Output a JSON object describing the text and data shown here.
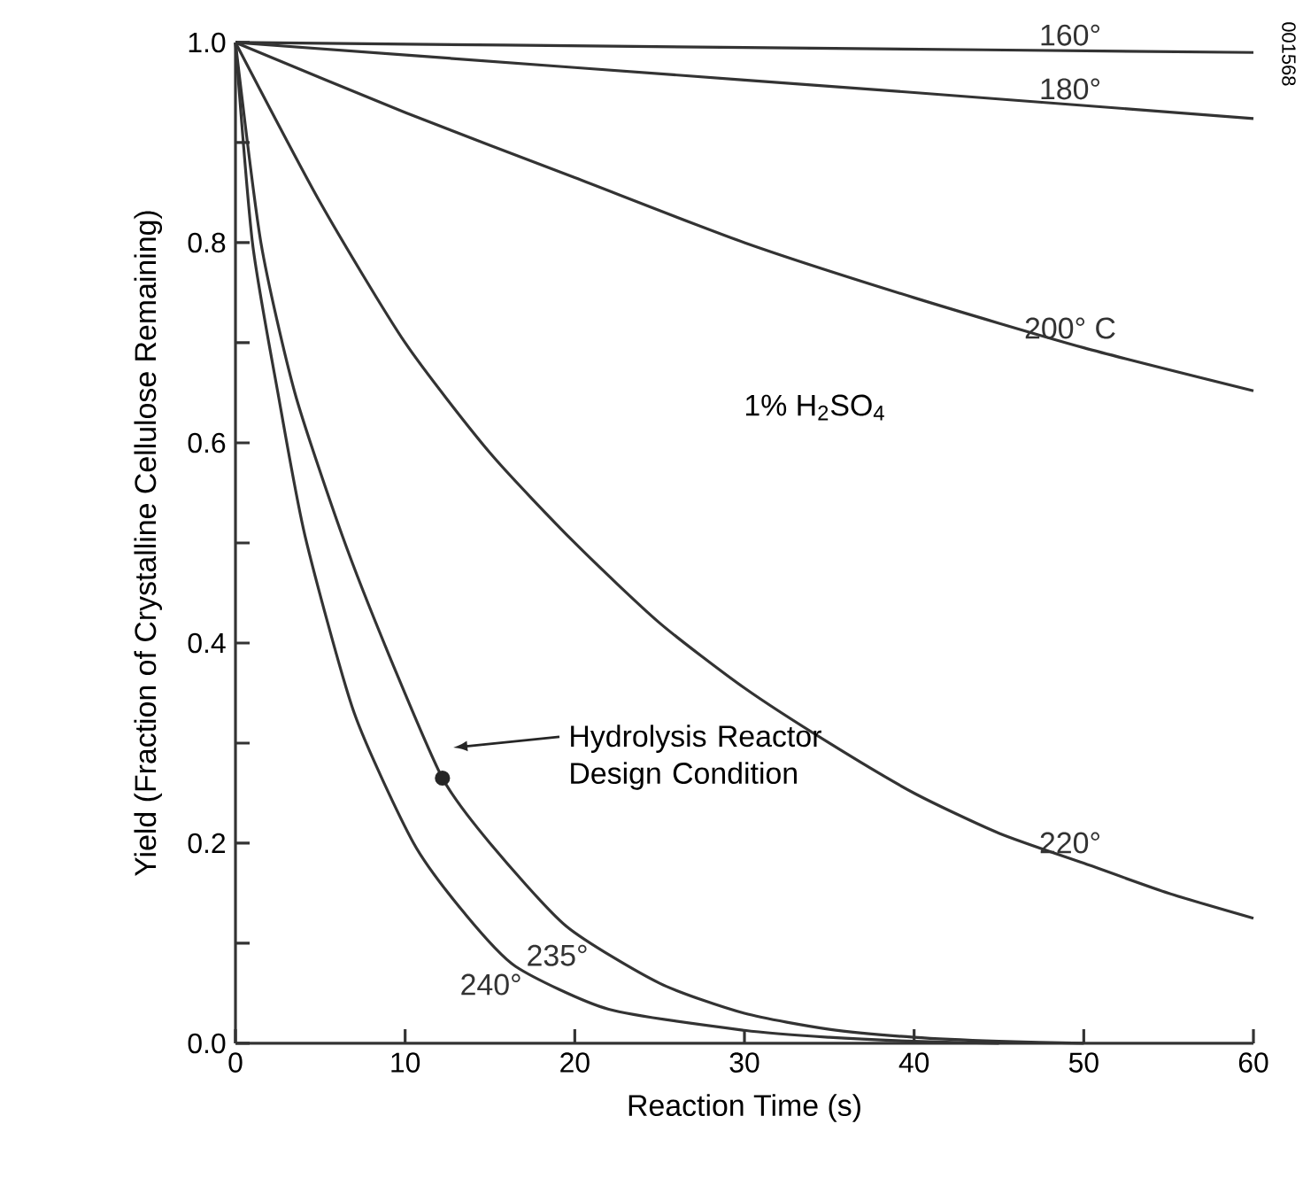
{
  "chart_data": {
    "type": "line",
    "xlabel": "Reaction Time (s)",
    "ylabel": "Yield (Fraction of Crystalline Cellulose Remaining)",
    "xlim": [
      0,
      60
    ],
    "ylim": [
      0,
      1.0
    ],
    "xticks": [
      0,
      10,
      20,
      30,
      40,
      50,
      60
    ],
    "yticks": [
      {
        "value": 0,
        "label": "0.0"
      },
      {
        "value": 0.1,
        "label": null
      },
      {
        "value": 0.2,
        "label": "0.2"
      },
      {
        "value": 0.3,
        "label": null
      },
      {
        "value": 0.4,
        "label": "0.4"
      },
      {
        "value": 0.5,
        "label": null
      },
      {
        "value": 0.6,
        "label": "0.6"
      },
      {
        "value": 0.7,
        "label": null
      },
      {
        "value": 0.8,
        "label": "0.8"
      },
      {
        "value": 0.9,
        "label": null
      },
      {
        "value": 1.0,
        "label": "1.0"
      }
    ],
    "grid": false,
    "marker": "none",
    "line_style": "solid",
    "series": [
      {
        "name": "160°",
        "color": "#333333",
        "x": [
          0,
          30,
          60
        ],
        "values": [
          1.0,
          0.995,
          0.99
        ]
      },
      {
        "name": "180°",
        "color": "#333333",
        "x": [
          0,
          20,
          40,
          60
        ],
        "values": [
          1.0,
          0.975,
          0.95,
          0.924
        ]
      },
      {
        "name": "200° C",
        "color": "#333333",
        "x": [
          0,
          10,
          20,
          30,
          40,
          50,
          60
        ],
        "values": [
          1.0,
          0.93,
          0.865,
          0.8,
          0.745,
          0.695,
          0.652
        ]
      },
      {
        "name": "220°",
        "color": "#333333",
        "x": [
          0,
          5,
          10,
          15,
          20,
          25,
          30,
          35,
          40,
          45,
          50,
          55,
          60
        ],
        "values": [
          1.0,
          0.84,
          0.7,
          0.59,
          0.5,
          0.42,
          0.355,
          0.3,
          0.25,
          0.21,
          0.18,
          0.15,
          0.125
        ]
      },
      {
        "name": "235°",
        "color": "#333333",
        "x": [
          0,
          1.5,
          3.5,
          6.3,
          9,
          12.2,
          15,
          19.5,
          25,
          30,
          35,
          40,
          45,
          50
        ],
        "values": [
          1.0,
          0.8,
          0.65,
          0.507,
          0.39,
          0.265,
          0.2,
          0.117,
          0.06,
          0.03,
          0.014,
          0.006,
          0.002,
          0
        ]
      },
      {
        "name": "240°",
        "color": "#333333",
        "x": [
          0,
          1,
          2.5,
          4.1,
          7,
          10.5,
          13.5,
          16.5,
          22,
          30,
          35,
          40,
          45
        ],
        "values": [
          1.0,
          0.8,
          0.65,
          0.507,
          0.33,
          0.2,
          0.13,
          0.077,
          0.034,
          0.013,
          0.006,
          0.002,
          0
        ]
      },
      {
        "type": "scatter",
        "marker": "circle",
        "color": "#262626",
        "x": [
          12.2
        ],
        "values": [
          0.265
        ]
      }
    ],
    "annotations": [
      "Hydrolysis Reactor Design Condition",
      "1% H$_{2}$SO$_{4}$",
      "001568"
    ]
  }
}
